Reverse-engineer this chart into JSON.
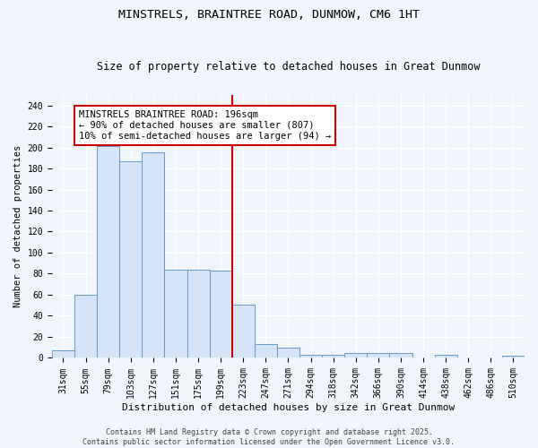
{
  "title": "MINSTRELS, BRAINTREE ROAD, DUNMOW, CM6 1HT",
  "subtitle": "Size of property relative to detached houses in Great Dunmow",
  "xlabel": "Distribution of detached houses by size in Great Dunmow",
  "ylabel": "Number of detached properties",
  "bar_color": "#d6e4f7",
  "bar_edge_color": "#6699cc",
  "background_color": "#f0f4fb",
  "grid_color": "#ffffff",
  "categories": [
    "31sqm",
    "55sqm",
    "79sqm",
    "103sqm",
    "127sqm",
    "151sqm",
    "175sqm",
    "199sqm",
    "223sqm",
    "247sqm",
    "271sqm",
    "294sqm",
    "318sqm",
    "342sqm",
    "366sqm",
    "390sqm",
    "414sqm",
    "438sqm",
    "462sqm",
    "486sqm",
    "510sqm"
  ],
  "values": [
    7,
    60,
    201,
    187,
    195,
    84,
    84,
    83,
    51,
    13,
    10,
    3,
    3,
    5,
    5,
    5,
    0,
    3,
    0,
    0,
    2
  ],
  "property_line_x": 7.5,
  "property_line_color": "#cc0000",
  "annotation_text": "MINSTRELS BRAINTREE ROAD: 196sqm\n← 90% of detached houses are smaller (807)\n10% of semi-detached houses are larger (94) →",
  "ylim": [
    0,
    250
  ],
  "yticks": [
    0,
    20,
    40,
    60,
    80,
    100,
    120,
    140,
    160,
    180,
    200,
    220,
    240
  ],
  "footer": "Contains HM Land Registry data © Crown copyright and database right 2025.\nContains public sector information licensed under the Open Government Licence v3.0.",
  "title_fontsize": 9.5,
  "subtitle_fontsize": 8.5,
  "xlabel_fontsize": 8,
  "ylabel_fontsize": 7.5,
  "tick_fontsize": 7,
  "annotation_fontsize": 7.5,
  "footer_fontsize": 6
}
